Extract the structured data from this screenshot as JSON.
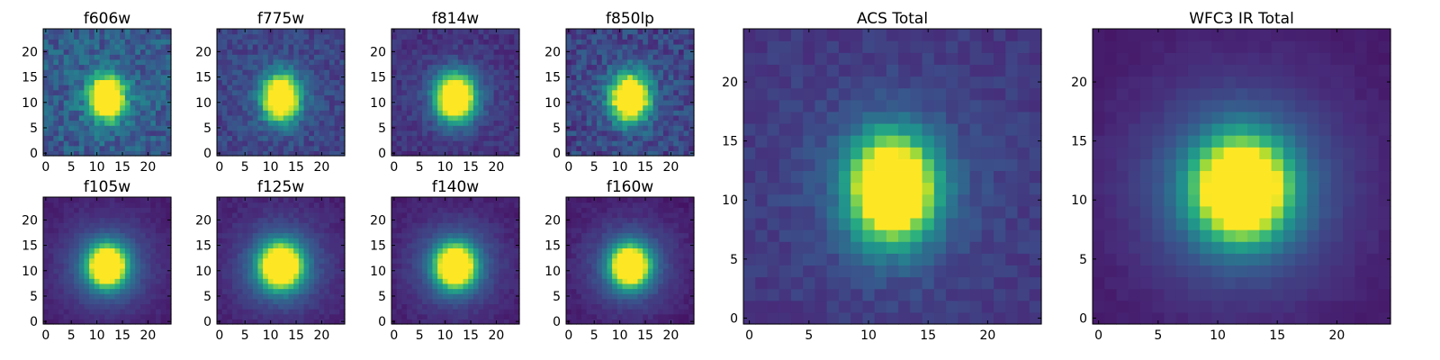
{
  "chart_data": [
    {
      "type": "heatmap",
      "title": "f606w",
      "size": 25,
      "xticks": [
        0,
        5,
        10,
        15,
        20
      ],
      "yticks": [
        0,
        5,
        10,
        15,
        20
      ],
      "xlim": [
        0,
        25
      ],
      "ylim": [
        0,
        25
      ],
      "center": [
        12.5,
        11.5
      ],
      "sigma": [
        2.2,
        2.8
      ],
      "background": 0.28,
      "noise": 0.24,
      "halo": 0.08,
      "seed": 11,
      "colormap": "viridis"
    },
    {
      "type": "heatmap",
      "title": "f775w",
      "size": 25,
      "xticks": [
        0,
        5,
        10,
        15,
        20
      ],
      "yticks": [
        0,
        5,
        10,
        15,
        20
      ],
      "xlim": [
        0,
        25
      ],
      "ylim": [
        0,
        25
      ],
      "center": [
        12.5,
        11.5
      ],
      "sigma": [
        2.3,
        2.9
      ],
      "background": 0.2,
      "noise": 0.16,
      "halo": 0.1,
      "seed": 23,
      "colormap": "viridis"
    },
    {
      "type": "heatmap",
      "title": "f814w",
      "size": 25,
      "xticks": [
        0,
        5,
        10,
        15,
        20
      ],
      "yticks": [
        0,
        5,
        10,
        15,
        20
      ],
      "xlim": [
        0,
        25
      ],
      "ylim": [
        0,
        25
      ],
      "center": [
        12.5,
        11.5
      ],
      "sigma": [
        2.5,
        3.0
      ],
      "background": 0.14,
      "noise": 0.12,
      "halo": 0.12,
      "seed": 37,
      "colormap": "viridis"
    },
    {
      "type": "heatmap",
      "title": "f850lp",
      "size": 25,
      "xticks": [
        0,
        5,
        10,
        15,
        20
      ],
      "yticks": [
        0,
        5,
        10,
        15,
        20
      ],
      "xlim": [
        0,
        25
      ],
      "ylim": [
        0,
        25
      ],
      "center": [
        12.5,
        11.5
      ],
      "sigma": [
        2.4,
        3.0
      ],
      "background": 0.2,
      "noise": 0.22,
      "halo": 0.1,
      "seed": 41,
      "colormap": "viridis"
    },
    {
      "type": "heatmap",
      "title": "f105w",
      "size": 25,
      "xticks": [
        0,
        5,
        10,
        15,
        20
      ],
      "yticks": [
        0,
        5,
        10,
        15,
        20
      ],
      "xlim": [
        0,
        25
      ],
      "ylim": [
        0,
        25
      ],
      "center": [
        12.5,
        11.5
      ],
      "sigma": [
        2.4,
        2.6
      ],
      "background": 0.08,
      "noise": 0.05,
      "halo": 0.3,
      "seed": 53,
      "colormap": "viridis"
    },
    {
      "type": "heatmap",
      "title": "f125w",
      "size": 25,
      "xticks": [
        0,
        5,
        10,
        15,
        20
      ],
      "yticks": [
        0,
        5,
        10,
        15,
        20
      ],
      "xlim": [
        0,
        25
      ],
      "ylim": [
        0,
        25
      ],
      "center": [
        12.5,
        11.5
      ],
      "sigma": [
        2.6,
        2.8
      ],
      "background": 0.09,
      "noise": 0.06,
      "halo": 0.32,
      "seed": 67,
      "colormap": "viridis"
    },
    {
      "type": "heatmap",
      "title": "f140w",
      "size": 25,
      "xticks": [
        0,
        5,
        10,
        15,
        20
      ],
      "yticks": [
        0,
        5,
        10,
        15,
        20
      ],
      "xlim": [
        0,
        25
      ],
      "ylim": [
        0,
        25
      ],
      "center": [
        12.5,
        11.5
      ],
      "sigma": [
        2.5,
        2.7
      ],
      "background": 0.08,
      "noise": 0.06,
      "halo": 0.3,
      "seed": 71,
      "colormap": "viridis"
    },
    {
      "type": "heatmap",
      "title": "f160w",
      "size": 25,
      "xticks": [
        0,
        5,
        10,
        15,
        20
      ],
      "yticks": [
        0,
        5,
        10,
        15,
        20
      ],
      "xlim": [
        0,
        25
      ],
      "ylim": [
        0,
        25
      ],
      "center": [
        12.5,
        11.5
      ],
      "sigma": [
        2.4,
        2.6
      ],
      "background": 0.07,
      "noise": 0.06,
      "halo": 0.3,
      "seed": 83,
      "colormap": "viridis"
    },
    {
      "type": "heatmap",
      "title": "ACS Total",
      "size": 25,
      "xticks": [
        0,
        5,
        10,
        15,
        20
      ],
      "yticks": [
        0,
        5,
        10,
        15,
        20
      ],
      "xlim": [
        0,
        25
      ],
      "ylim": [
        0,
        25
      ],
      "center": [
        12.5,
        11.5
      ],
      "sigma": [
        2.3,
        2.9
      ],
      "background": 0.16,
      "noise": 0.09,
      "halo": 0.14,
      "seed": 97,
      "colormap": "viridis"
    },
    {
      "type": "heatmap",
      "title": "WFC3 IR Total",
      "size": 25,
      "xticks": [
        0,
        5,
        10,
        15,
        20
      ],
      "yticks": [
        0,
        5,
        10,
        15,
        20
      ],
      "xlim": [
        0,
        25
      ],
      "ylim": [
        0,
        25
      ],
      "center": [
        12.5,
        11.5
      ],
      "sigma": [
        2.5,
        2.7
      ],
      "background": 0.07,
      "noise": 0.03,
      "halo": 0.34,
      "seed": 101,
      "colormap": "viridis"
    }
  ]
}
